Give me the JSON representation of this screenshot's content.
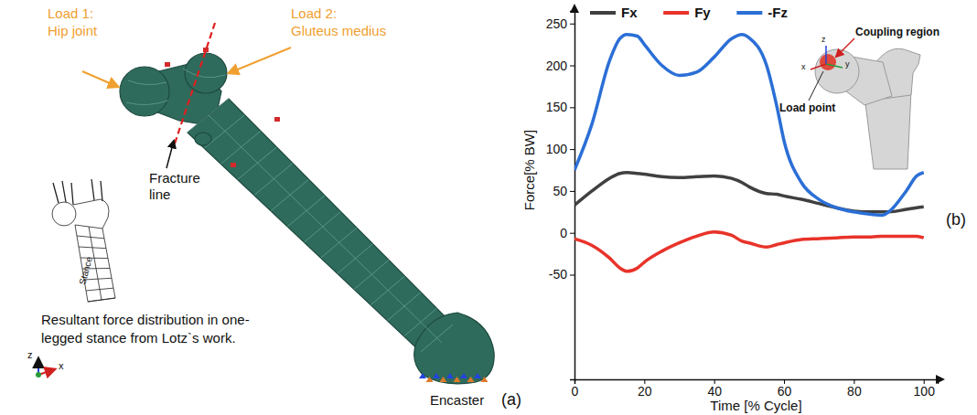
{
  "chart_data": {
    "type": "line",
    "x_label": "Time [% Cycle]",
    "y_label": "Force[% BW]",
    "panel_label": "(b)",
    "x": [
      0,
      5,
      10,
      13,
      15,
      18,
      20,
      25,
      30,
      35,
      40,
      45,
      48,
      50,
      55,
      58,
      60,
      65,
      70,
      75,
      80,
      85,
      88,
      90,
      95,
      98,
      100
    ],
    "series": [
      {
        "name": "Fx",
        "color": "#404040",
        "values": [
          33,
          50,
          65,
          71,
          72,
          71,
          70,
          67,
          66,
          67,
          68,
          65,
          60,
          55,
          47,
          46,
          44,
          40,
          35,
          30,
          26,
          25,
          25,
          25,
          28,
          30,
          31
        ]
      },
      {
        "name": "Fy",
        "color": "#e8332a",
        "values": [
          -7,
          -15,
          -30,
          -42,
          -46,
          -42,
          -35,
          -22,
          -12,
          -4,
          1,
          -3,
          -10,
          -12,
          -17,
          -14,
          -12,
          -8,
          -7,
          -6,
          -5,
          -5,
          -4,
          -4,
          -4,
          -4,
          -6
        ]
      },
      {
        "name": "-Fz",
        "color": "#2b6fd6",
        "values": [
          75,
          130,
          205,
          232,
          237,
          235,
          225,
          200,
          188,
          192,
          210,
          232,
          237,
          233,
          200,
          150,
          110,
          60,
          40,
          30,
          25,
          22,
          21,
          25,
          50,
          68,
          72
        ]
      }
    ],
    "xlim": [
      0,
      104
    ],
    "ylim": [
      -175,
      265
    ],
    "xticks": [
      0,
      20,
      40,
      60,
      80,
      100
    ],
    "yticks": [
      -50,
      0,
      50,
      100,
      150,
      200,
      250
    ],
    "grid": false,
    "legend": "top",
    "annotations": [
      "Coupling region",
      "Load point",
      "z",
      "y",
      "x"
    ]
  },
  "diagram": {
    "panel_label": "(a)",
    "load_1": [
      "Load 1:",
      "Hip joint"
    ],
    "load_2": [
      "Load 2:",
      "Gluteus medius"
    ],
    "fracture_line": [
      "Fracture",
      "line"
    ],
    "inset_label": "Stance",
    "caption": [
      "Resultant force distribution in one-",
      "legged stance from Lotz`s work."
    ],
    "axes": [
      "z",
      "x"
    ],
    "support": "Encaster"
  }
}
